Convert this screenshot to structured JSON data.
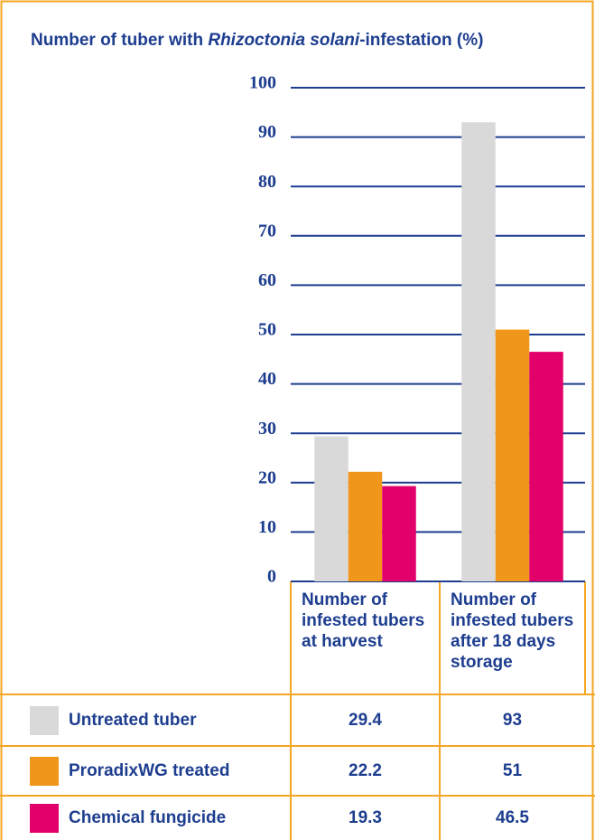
{
  "chart_data": {
    "type": "bar",
    "title": {
      "before": "Number of tuber with",
      "italic": "Rhizoctonia solani",
      "after": "-infestation (%)"
    },
    "categories": [
      "Number of infested tubers at harvest",
      "Number of infested tubers after 18 days storage"
    ],
    "series": [
      {
        "name": "Untreated tuber",
        "color": "#d9d9d9",
        "values": [
          29.4,
          93
        ]
      },
      {
        "name": "ProradixWG treated",
        "color": "#f0961a",
        "values": [
          22.2,
          51
        ]
      },
      {
        "name": "Chemical fungicide",
        "color": "#e2006a",
        "values": [
          19.3,
          46.5
        ]
      }
    ],
    "ylim": [
      0,
      100
    ],
    "yticks": [
      0,
      10,
      20,
      30,
      40,
      50,
      60,
      70,
      80,
      90,
      100
    ],
    "grid": true
  }
}
